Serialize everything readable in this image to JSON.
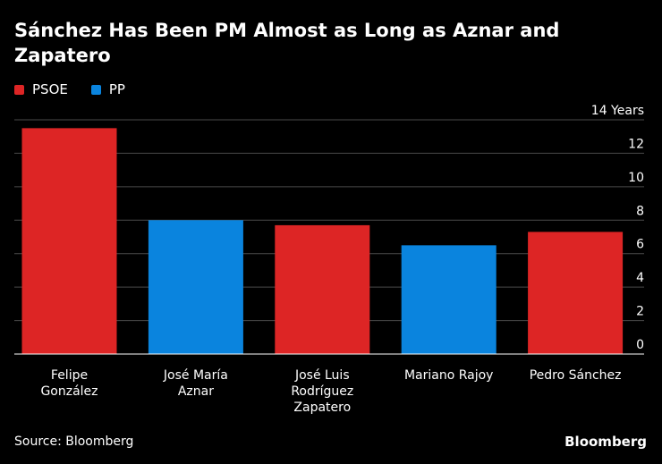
{
  "chart_data": {
    "type": "bar",
    "title": "Sánchez Has Been PM Almost as Long as Aznar and Zapatero",
    "categories": [
      [
        "Felipe",
        "González"
      ],
      [
        "José María",
        "Aznar"
      ],
      [
        "José Luis",
        "Rodríguez",
        "Zapatero"
      ],
      [
        "Mariano Rajoy"
      ],
      [
        "Pedro Sánchez"
      ]
    ],
    "values": [
      13.5,
      8.0,
      7.7,
      6.5,
      7.3
    ],
    "parties": [
      "PSOE",
      "PP",
      "PSOE",
      "PP",
      "PSOE"
    ],
    "legend": [
      {
        "name": "PSOE",
        "color": "#dd2525"
      },
      {
        "name": "PP",
        "color": "#0a84de"
      }
    ],
    "ylabel": "Years",
    "yticks": [
      0,
      2,
      4,
      6,
      8,
      10,
      12,
      14
    ],
    "top_tick_label": "14 Years",
    "ylim": [
      0,
      14
    ],
    "grid": true,
    "legend_position": "top-left"
  },
  "footer": {
    "source": "Source: Bloomberg",
    "brand": "Bloomberg"
  }
}
